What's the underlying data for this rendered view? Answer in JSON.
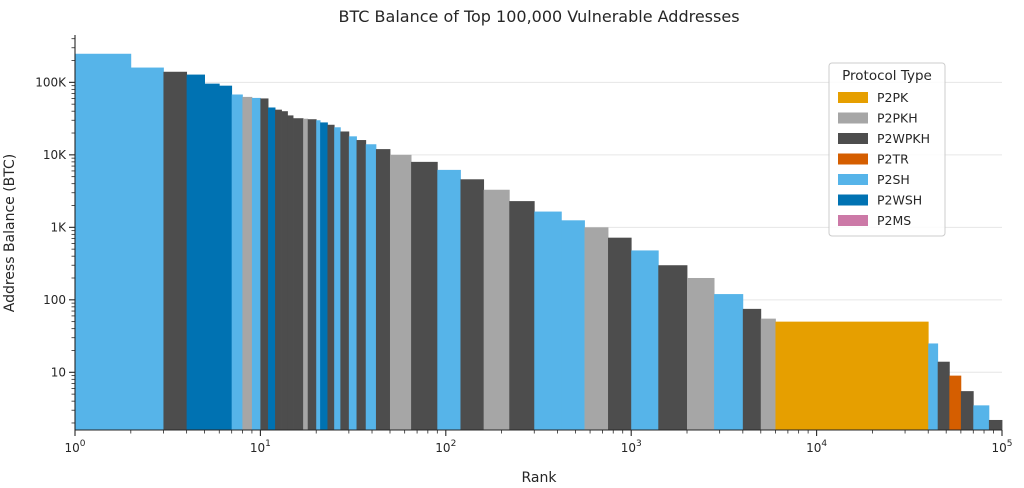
{
  "chart_data": {
    "type": "area",
    "title": "BTC Balance of Top 100,000 Vulnerable Addresses",
    "xlabel": "Rank",
    "ylabel": "Address Balance (BTC)",
    "xscale": "log",
    "yscale": "log",
    "xlim": [
      1,
      100000
    ],
    "ylim": [
      1.6,
      450000
    ],
    "grid": "horizontal",
    "x_ticks": [
      {
        "value": 1,
        "base": "10",
        "exp": "0"
      },
      {
        "value": 10,
        "base": "10",
        "exp": "1"
      },
      {
        "value": 100,
        "base": "10",
        "exp": "2"
      },
      {
        "value": 1000,
        "base": "10",
        "exp": "3"
      },
      {
        "value": 10000,
        "base": "10",
        "exp": "4"
      },
      {
        "value": 100000,
        "base": "10",
        "exp": "5"
      }
    ],
    "y_ticks": [
      {
        "value": 10,
        "label": "10"
      },
      {
        "value": 100,
        "label": "100"
      },
      {
        "value": 1000,
        "label": "1K"
      },
      {
        "value": 10000,
        "label": "10K"
      },
      {
        "value": 100000,
        "label": "100K"
      }
    ],
    "legend": {
      "title": "Protocol Type",
      "position": "top-right",
      "entries": [
        {
          "name": "P2PK",
          "color": "#E69F00"
        },
        {
          "name": "P2PKH",
          "color": "#A6A6A6"
        },
        {
          "name": "P2WPKH",
          "color": "#4D4D4D"
        },
        {
          "name": "P2TR",
          "color": "#D55E00"
        },
        {
          "name": "P2SH",
          "color": "#56B4E9"
        },
        {
          "name": "P2WSH",
          "color": "#0072B2"
        },
        {
          "name": "P2MS",
          "color": "#CC79A7"
        }
      ]
    },
    "segments": [
      {
        "x0": 1,
        "x1": 2,
        "y": 248000,
        "type": "P2SH"
      },
      {
        "x0": 2,
        "x1": 3,
        "y": 160000,
        "type": "P2SH"
      },
      {
        "x0": 3,
        "x1": 4,
        "y": 140000,
        "type": "P2WPKH"
      },
      {
        "x0": 4,
        "x1": 5,
        "y": 128000,
        "type": "P2WSH"
      },
      {
        "x0": 5,
        "x1": 6,
        "y": 96000,
        "type": "P2WSH"
      },
      {
        "x0": 6,
        "x1": 7,
        "y": 90000,
        "type": "P2WSH"
      },
      {
        "x0": 7,
        "x1": 8,
        "y": 68000,
        "type": "P2SH"
      },
      {
        "x0": 8,
        "x1": 9,
        "y": 63000,
        "type": "P2PKH"
      },
      {
        "x0": 9,
        "x1": 10,
        "y": 61000,
        "type": "P2SH"
      },
      {
        "x0": 10,
        "x1": 11,
        "y": 60000,
        "type": "P2WPKH"
      },
      {
        "x0": 11,
        "x1": 12,
        "y": 45000,
        "type": "P2WSH"
      },
      {
        "x0": 12,
        "x1": 13,
        "y": 42000,
        "type": "P2WPKH"
      },
      {
        "x0": 13,
        "x1": 14,
        "y": 40000,
        "type": "P2WPKH"
      },
      {
        "x0": 14,
        "x1": 15,
        "y": 35000,
        "type": "P2WPKH"
      },
      {
        "x0": 15,
        "x1": 17,
        "y": 32000,
        "type": "P2WPKH"
      },
      {
        "x0": 17,
        "x1": 18,
        "y": 31500,
        "type": "P2PKH"
      },
      {
        "x0": 18,
        "x1": 20,
        "y": 31000,
        "type": "P2WPKH"
      },
      {
        "x0": 20,
        "x1": 21,
        "y": 30000,
        "type": "P2SH"
      },
      {
        "x0": 21,
        "x1": 23,
        "y": 28000,
        "type": "P2WSH"
      },
      {
        "x0": 23,
        "x1": 25,
        "y": 26000,
        "type": "P2WPKH"
      },
      {
        "x0": 25,
        "x1": 27,
        "y": 24000,
        "type": "P2SH"
      },
      {
        "x0": 27,
        "x1": 30,
        "y": 21000,
        "type": "P2WPKH"
      },
      {
        "x0": 30,
        "x1": 33,
        "y": 18000,
        "type": "P2SH"
      },
      {
        "x0": 33,
        "x1": 37,
        "y": 16000,
        "type": "P2WPKH"
      },
      {
        "x0": 37,
        "x1": 42,
        "y": 14000,
        "type": "P2SH"
      },
      {
        "x0": 42,
        "x1": 50,
        "y": 12000,
        "type": "P2WPKH"
      },
      {
        "x0": 50,
        "x1": 65,
        "y": 10000,
        "type": "P2PKH"
      },
      {
        "x0": 65,
        "x1": 90,
        "y": 8000,
        "type": "P2WPKH"
      },
      {
        "x0": 90,
        "x1": 120,
        "y": 6200,
        "type": "P2SH"
      },
      {
        "x0": 120,
        "x1": 160,
        "y": 4600,
        "type": "P2WPKH"
      },
      {
        "x0": 160,
        "x1": 220,
        "y": 3300,
        "type": "P2PKH"
      },
      {
        "x0": 220,
        "x1": 300,
        "y": 2300,
        "type": "P2WPKH"
      },
      {
        "x0": 300,
        "x1": 420,
        "y": 1650,
        "type": "P2SH"
      },
      {
        "x0": 420,
        "x1": 560,
        "y": 1250,
        "type": "P2SH"
      },
      {
        "x0": 560,
        "x1": 750,
        "y": 1000,
        "type": "P2PKH"
      },
      {
        "x0": 750,
        "x1": 1000,
        "y": 720,
        "type": "P2WPKH"
      },
      {
        "x0": 1000,
        "x1": 1400,
        "y": 480,
        "type": "P2SH"
      },
      {
        "x0": 1400,
        "x1": 2000,
        "y": 300,
        "type": "P2WPKH"
      },
      {
        "x0": 2000,
        "x1": 2800,
        "y": 200,
        "type": "P2PKH"
      },
      {
        "x0": 2800,
        "x1": 4000,
        "y": 120,
        "type": "P2SH"
      },
      {
        "x0": 4000,
        "x1": 5000,
        "y": 75,
        "type": "P2WPKH"
      },
      {
        "x0": 5000,
        "x1": 6000,
        "y": 55,
        "type": "P2PKH"
      },
      {
        "x0": 6000,
        "x1": 40000,
        "y": 50,
        "type": "P2PK"
      },
      {
        "x0": 40000,
        "x1": 45000,
        "y": 25,
        "type": "P2SH"
      },
      {
        "x0": 45000,
        "x1": 52000,
        "y": 14,
        "type": "P2WPKH"
      },
      {
        "x0": 52000,
        "x1": 60000,
        "y": 9,
        "type": "P2TR"
      },
      {
        "x0": 60000,
        "x1": 70000,
        "y": 5.5,
        "type": "P2WPKH"
      },
      {
        "x0": 70000,
        "x1": 85000,
        "y": 3.5,
        "type": "P2SH"
      },
      {
        "x0": 85000,
        "x1": 100000,
        "y": 2.2,
        "type": "P2WPKH"
      }
    ]
  }
}
